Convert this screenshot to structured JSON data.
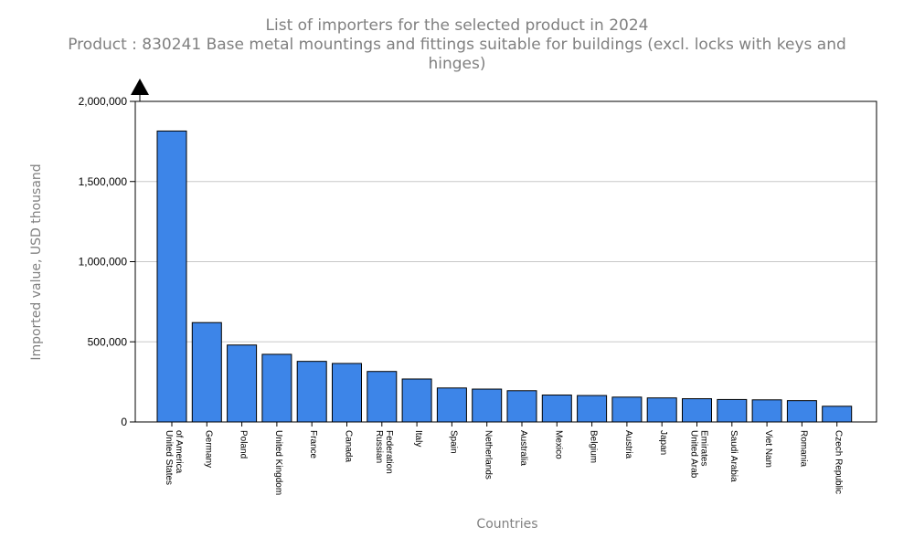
{
  "chart_data": {
    "type": "bar",
    "title": "List of importers for the selected product in 2024",
    "subtitle": "Product : 830241 Base metal mountings and fittings suitable for buildings (excl. locks with keys and hinges)",
    "xlabel": "Countries",
    "ylabel": "Imported value, USD thousand",
    "ylim": [
      0,
      2000000
    ],
    "yticks": [
      {
        "value": 0,
        "label": "0"
      },
      {
        "value": 500000,
        "label": "500,000"
      },
      {
        "value": 1000000,
        "label": "1,000,000"
      },
      {
        "value": 1500000,
        "label": "1,500,000"
      },
      {
        "value": 2000000,
        "label": "2,000,000"
      }
    ],
    "grid": true,
    "bar_color": "#3d85e8",
    "categories": [
      [
        "United States",
        "of America"
      ],
      [
        "Germany"
      ],
      [
        "Poland"
      ],
      [
        "United Kingdom"
      ],
      [
        "France"
      ],
      [
        "Canada"
      ],
      [
        "Russian",
        "Federation"
      ],
      [
        "Italy"
      ],
      [
        "Spain"
      ],
      [
        "Netherlands"
      ],
      [
        "Australia"
      ],
      [
        "Mexico"
      ],
      [
        "Belgium"
      ],
      [
        "Austria"
      ],
      [
        "Japan"
      ],
      [
        "United Arab",
        "Emirates"
      ],
      [
        "Saudi Arabia"
      ],
      [
        "Viet Nam"
      ],
      [
        "Romania"
      ],
      [
        "Czech Republic"
      ]
    ],
    "values": [
      1815000,
      620000,
      480000,
      422000,
      378000,
      365000,
      315000,
      268000,
      212000,
      205000,
      195000,
      168000,
      165000,
      155000,
      150000,
      145000,
      140000,
      138000,
      133000,
      98000
    ]
  }
}
